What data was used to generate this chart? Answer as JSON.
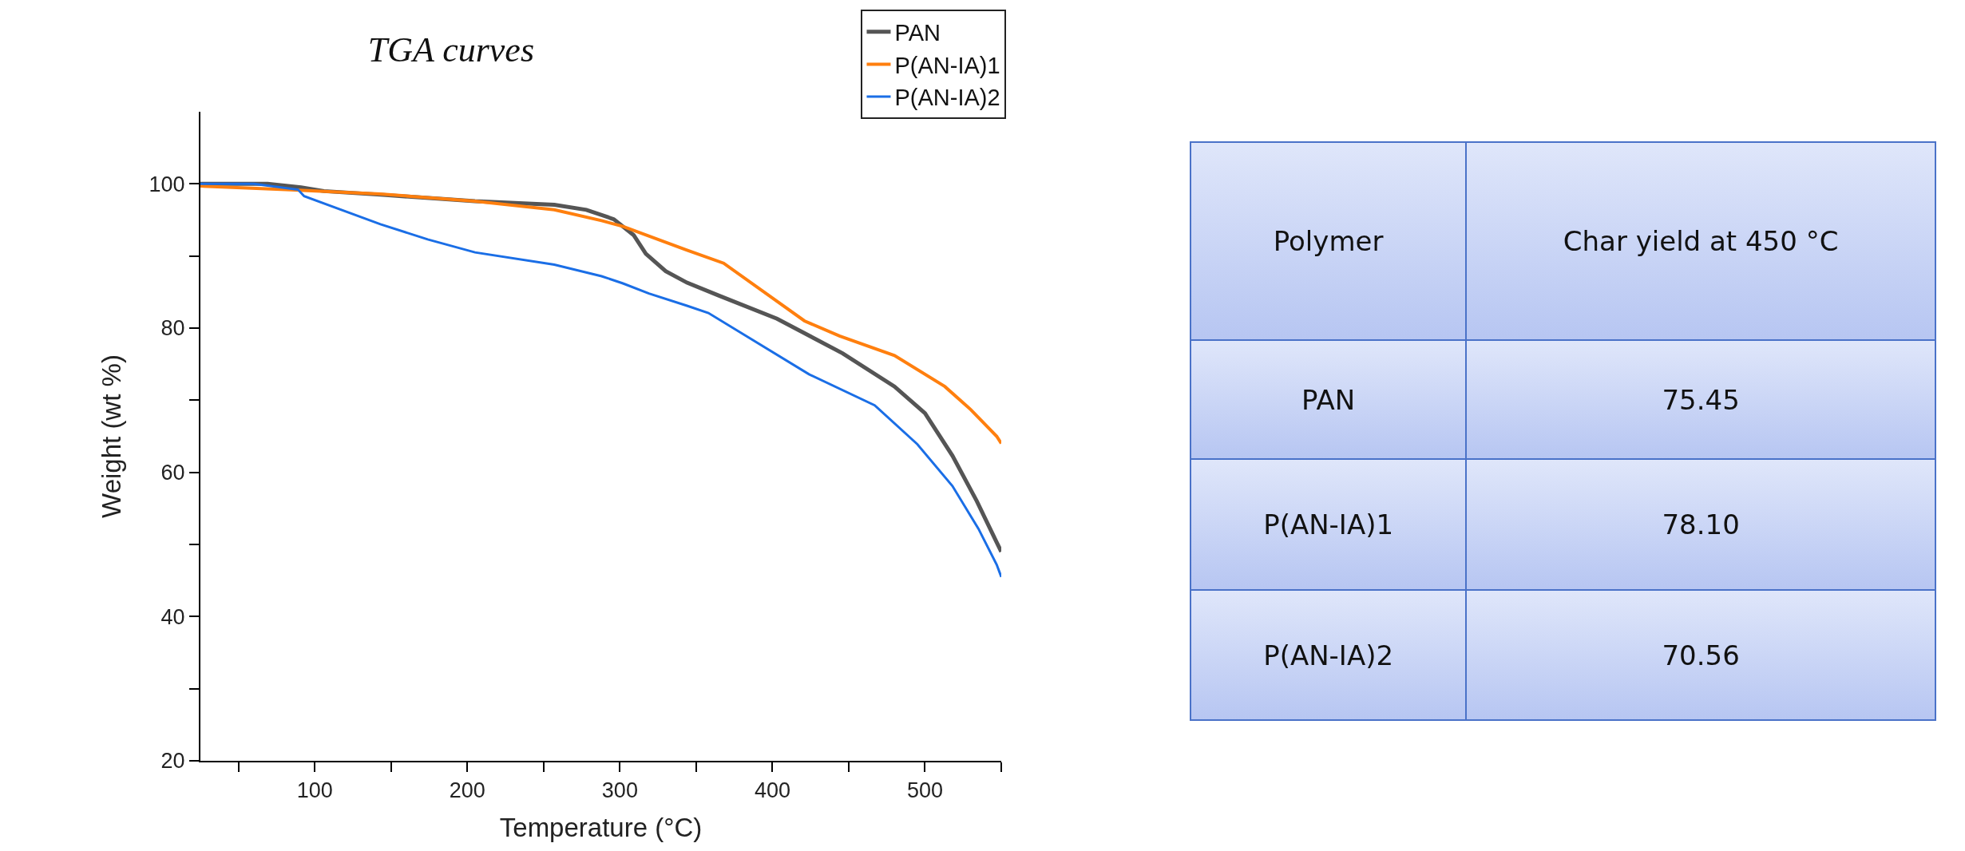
{
  "chart_data": [
    {
      "type": "line",
      "title": "TGA curves",
      "xlabel": "Temperature (°C)",
      "ylabel": "Weight (wt %)",
      "xlim": [
        25,
        550
      ],
      "ylim": [
        20,
        110
      ],
      "xticks": [
        {
          "value": 50,
          "label": null
        },
        100,
        {
          "value": 150,
          "label": null
        },
        200,
        {
          "value": 250,
          "label": null
        },
        300,
        {
          "value": 350,
          "label": null
        },
        400,
        {
          "value": 450,
          "label": null
        },
        500,
        {
          "value": 550,
          "label": null
        }
      ],
      "yticks": [
        20,
        {
          "value": 30,
          "label": null
        },
        40,
        {
          "value": 50,
          "label": null
        },
        60,
        {
          "value": 70,
          "label": null
        },
        80,
        {
          "value": 90,
          "label": null
        },
        100
      ],
      "grid": false,
      "legend": "top right",
      "marker": "none",
      "line_style": "solid",
      "series": [
        {
          "name": "PAN",
          "color": "#555555",
          "x": [
            25,
            69,
            91,
            106,
            143,
            205,
            257,
            278,
            296,
            309,
            317,
            330,
            344,
            365,
            403,
            446,
            480,
            500,
            518,
            534,
            547,
            550
          ],
          "values": [
            100,
            100,
            99.5,
            99.0,
            98.5,
            97.6,
            97.1,
            96.4,
            95.1,
            92.9,
            90.3,
            87.9,
            86.3,
            84.5,
            81.3,
            76.5,
            71.9,
            68.2,
            62.3,
            56.0,
            50.3,
            49
          ]
        },
        {
          "name": "P(AN-IA)1",
          "color": "#ff7f0e",
          "x": [
            25,
            81,
            143,
            205,
            257,
            288,
            302,
            344,
            368,
            421,
            444,
            480,
            513,
            530,
            547,
            550
          ],
          "values": [
            99.7,
            99.2,
            98.6,
            97.6,
            96.4,
            94.9,
            94.1,
            90.8,
            89.0,
            81.0,
            78.9,
            76.2,
            71.9,
            68.7,
            65.0,
            64
          ]
        },
        {
          "name": "P(AN-IA)2",
          "color": "#1a6ee6",
          "x": [
            25,
            60,
            89,
            93,
            143,
            174,
            205,
            257,
            288,
            302,
            319,
            344,
            358,
            424,
            467,
            495,
            518,
            535,
            547,
            550
          ],
          "values": [
            100,
            100,
            99.2,
            98.3,
            94.4,
            92.3,
            90.5,
            88.8,
            87.2,
            86.2,
            84.8,
            83.1,
            82.1,
            73.6,
            69.3,
            63.9,
            58.1,
            52.2,
            47.2,
            45.5
          ]
        }
      ]
    },
    {
      "type": "other",
      "annotations": [
        "Polymer",
        "Char yield at 450 °C",
        "PAN",
        "75.45",
        "P(AN-IA)1",
        "78.10",
        "P(AN-IA)2",
        "70.56"
      ]
    }
  ]
}
